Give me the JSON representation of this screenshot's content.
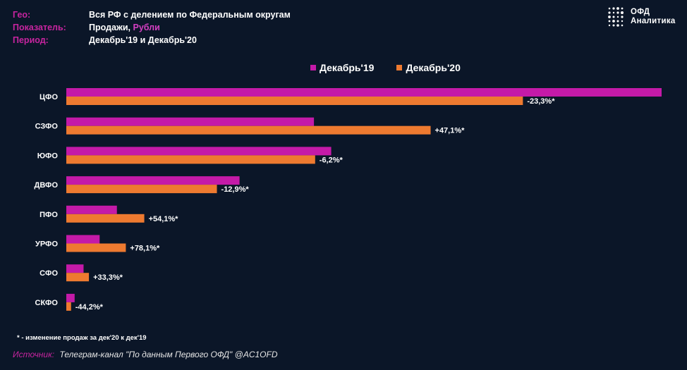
{
  "meta": {
    "geo_label": "Гео:",
    "geo_value": "Вся РФ с делением по Федеральным округам",
    "indicator_label": "Показатель:",
    "indicator_value": "Продажи,",
    "indicator_unit": "Рубли",
    "period_label": "Период:",
    "period_value": "Декабрь'19 и Декабрь'20"
  },
  "logo": {
    "line1": "ОФД",
    "line2": "Аналитика"
  },
  "colors": {
    "dec19": "#c41aa8",
    "dec20": "#ee7a30",
    "background": "#0b1628",
    "accent": "#c7249f"
  },
  "chart_data": {
    "type": "bar",
    "orientation": "horizontal",
    "categories": [
      "ЦФО",
      "СЗФО",
      "ЮФО",
      "ДВФО",
      "ПФО",
      "УРФО",
      "СФО",
      "СКФО"
    ],
    "series": [
      {
        "name": "Декабрь'19",
        "values": [
          100,
          41.6,
          44.5,
          29.1,
          8.5,
          5.6,
          2.9,
          1.4
        ]
      },
      {
        "name": "Декабрь'20",
        "values": [
          76.7,
          61.2,
          41.8,
          25.3,
          13.1,
          10.0,
          3.8,
          0.8
        ]
      }
    ],
    "data_labels": [
      "-23,3%*",
      "+47,1%*",
      "-6,2%*",
      "-12,9%*",
      "+54,1%*",
      "+78,1%*",
      "+33,3%*",
      "-44,2%*"
    ],
    "xlim": [
      0,
      100
    ],
    "legend": "top-center",
    "grid": false
  },
  "footnote": "* - изменение продаж за дек'20  к  дек'19",
  "source": {
    "label": "Источник:",
    "text": "Телеграм-канал \"По данным Первого ОФД\" @AC1OFD"
  }
}
